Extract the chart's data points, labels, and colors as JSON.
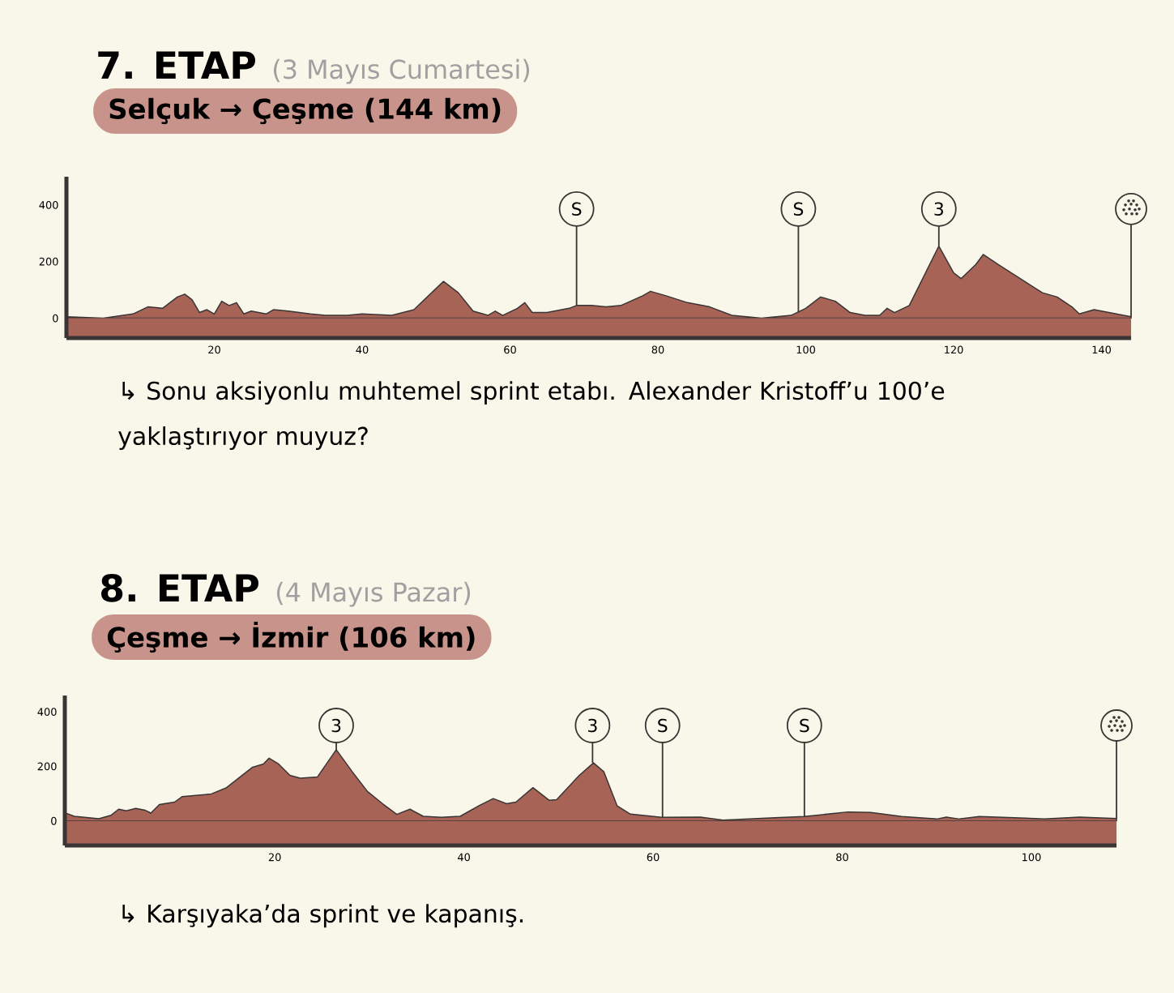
{
  "chart_data": [
    {
      "type": "area",
      "title": "7. ETAP",
      "subtitle": "(3 Mayıs Cumartesi)",
      "annotations": [
        "Selçuk → Çeşme (144 km)",
        "↳ Sonu aksiyonlu muhtemel  sprint etabı. Alexander Kristoff’u 100’e yaklaştırıyor muyuz?",
        {
          "text": "S",
          "x": 69,
          "y": 45
        },
        {
          "text": "S",
          "x": 99,
          "y": 20
        },
        {
          "text": "3",
          "x": 118,
          "y": 255
        }
      ],
      "color": "#a86357",
      "bands": [
        {
          "axis": "y",
          "from": -70,
          "to": 0,
          "color": "#a86357"
        }
      ],
      "x": [
        0,
        5,
        9,
        11,
        13,
        15,
        16,
        17,
        18,
        19,
        20,
        21,
        22,
        23,
        24,
        25,
        26,
        27,
        28,
        30,
        33,
        35,
        38,
        40,
        44,
        47,
        49,
        51,
        53,
        55,
        57,
        58,
        59,
        61,
        62,
        63,
        65,
        68,
        69,
        71,
        73,
        75,
        78,
        79,
        81,
        84,
        87,
        90,
        94,
        98,
        100,
        102,
        104,
        106,
        108,
        110,
        111,
        112,
        114,
        116,
        118,
        120,
        121,
        123,
        124,
        126,
        129,
        132,
        134,
        136,
        137,
        139,
        141,
        143,
        144
      ],
      "values": [
        5,
        0,
        15,
        40,
        35,
        75,
        85,
        65,
        20,
        30,
        15,
        60,
        45,
        55,
        15,
        25,
        20,
        15,
        30,
        25,
        15,
        10,
        10,
        15,
        10,
        30,
        80,
        130,
        90,
        25,
        10,
        25,
        10,
        35,
        55,
        20,
        20,
        35,
        45,
        45,
        40,
        45,
        80,
        95,
        80,
        55,
        40,
        10,
        0,
        10,
        35,
        75,
        60,
        20,
        10,
        10,
        35,
        20,
        45,
        150,
        255,
        160,
        140,
        190,
        225,
        190,
        140,
        90,
        75,
        40,
        15,
        30,
        20,
        10,
        5
      ],
      "xlim": [
        0,
        144
      ],
      "ylim": [
        -70,
        500
      ],
      "xticks": [
        20,
        40,
        60,
        80,
        100,
        120,
        140
      ],
      "yticks": [
        0,
        200,
        400
      ]
    },
    {
      "type": "area",
      "title": "8. ETAP",
      "subtitle": "(4 Mayıs Pazar)",
      "annotations": [
        "Çeşme → İzmir (106 km)",
        "↳ Karşıyaka’da sprint ve kapanış.",
        {
          "text": "3",
          "x": 26.5,
          "y": 261
        },
        {
          "text": "3",
          "x": 53.6,
          "y": 213
        },
        {
          "text": "S",
          "x": 61,
          "y": 13
        },
        {
          "text": "S",
          "x": 76,
          "y": 16
        }
      ],
      "color": "#a86357",
      "bands": [
        {
          "axis": "y",
          "from": -90,
          "to": 0,
          "color": "#a86357"
        }
      ],
      "x": [
        -2.2,
        -1.2,
        1.4,
        2.7,
        3.5,
        4.3,
        5.3,
        6.3,
        6.9,
        7.8,
        9.4,
        10.2,
        13.3,
        14.9,
        17.6,
        18.8,
        19.4,
        20.4,
        21.6,
        22.7,
        24.5,
        26.5,
        28.2,
        29.8,
        31.4,
        32.9,
        34.3,
        35.7,
        37.6,
        39.6,
        41.6,
        43.1,
        44.5,
        45.5,
        47.3,
        49,
        49.8,
        52.2,
        53.7,
        54.8,
        56.2,
        57.6,
        60.9,
        65,
        67.4,
        72.9,
        76,
        80.6,
        83,
        86.3,
        90,
        91,
        92.4,
        94.5,
        98.2,
        101.4,
        105.1,
        109
      ],
      "values": [
        30,
        17,
        8,
        21,
        43,
        37,
        46,
        39,
        29,
        60,
        69,
        89,
        99,
        122,
        196,
        209,
        230,
        209,
        167,
        157,
        161,
        261,
        180,
        108,
        63,
        24,
        43,
        17,
        13,
        17,
        56,
        82,
        63,
        69,
        122,
        76,
        78,
        167,
        213,
        180,
        55,
        25,
        13,
        14,
        3,
        12,
        16,
        33,
        31,
        16,
        7,
        14,
        7,
        16,
        12,
        7,
        14,
        9
      ],
      "xlim": [
        -2.2,
        109
      ],
      "ylim": [
        -90,
        460
      ],
      "xticks": [
        20,
        40,
        60,
        80,
        100
      ],
      "yticks": [
        0,
        200,
        400
      ]
    }
  ]
}
